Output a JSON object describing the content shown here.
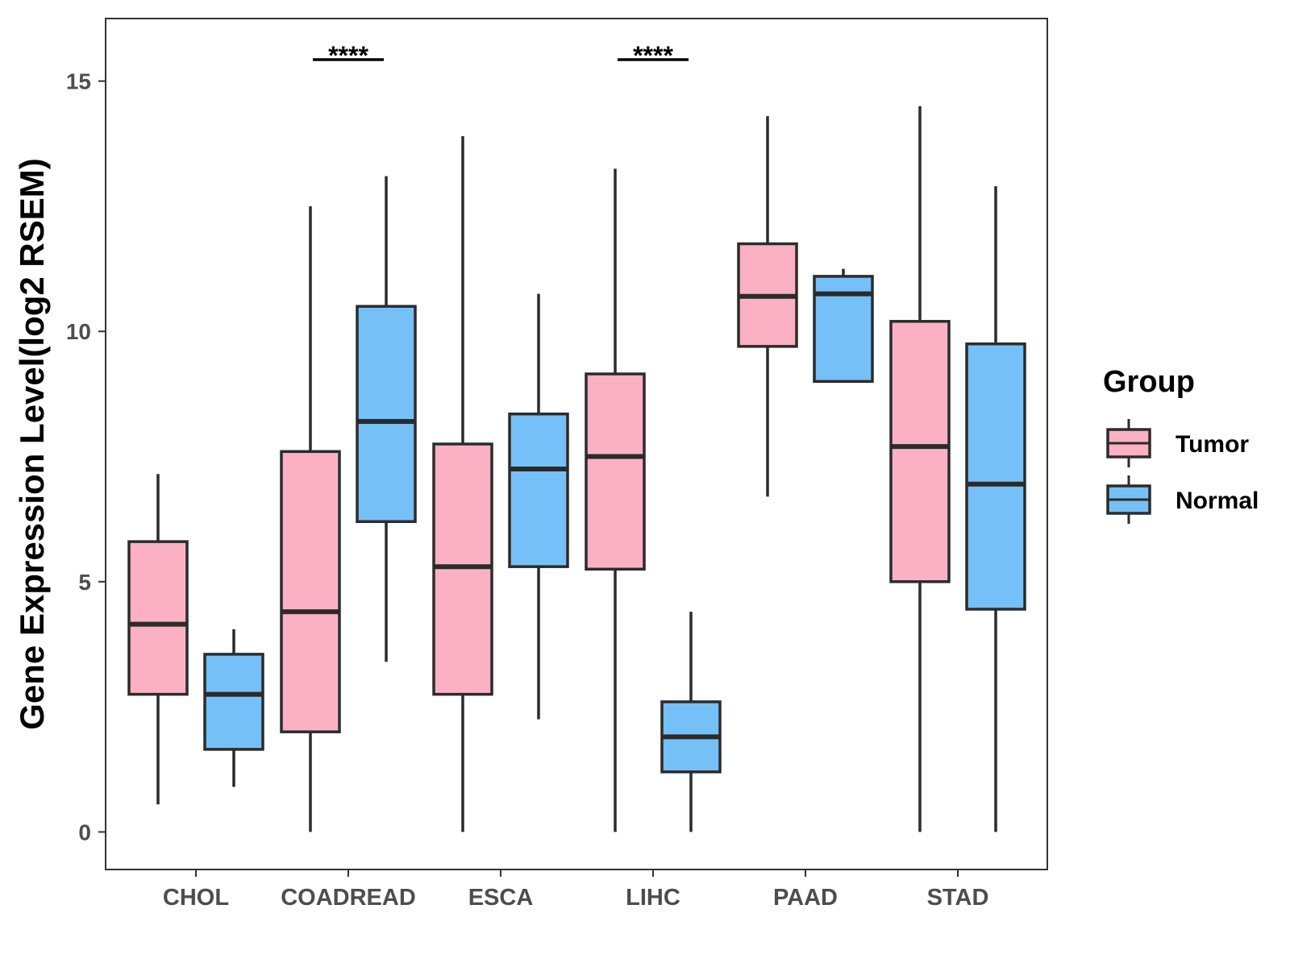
{
  "chart_data": {
    "type": "box",
    "ylabel": "Gene Expression Level(log2 RSEM)",
    "xlabel": "",
    "ylim": [
      -0.75,
      16.25
    ],
    "yticks": [
      0,
      5,
      10,
      15
    ],
    "ytick_labels": [
      "0",
      "5",
      "10",
      "15"
    ],
    "categories": [
      "CHOL",
      "COADREAD",
      "ESCA",
      "LIHC",
      "PAAD",
      "STAD"
    ],
    "legend": {
      "title": "Group",
      "position": "right",
      "entries": [
        {
          "name": "Tumor",
          "color": "#FBB1C3"
        },
        {
          "name": "Normal",
          "color": "#76C0F8"
        }
      ]
    },
    "series": [
      {
        "name": "Tumor",
        "color": "#FBB1C3",
        "boxes": [
          {
            "category": "CHOL",
            "whisker_low": 0.55,
            "q1": 2.75,
            "median": 4.15,
            "q3": 5.8,
            "whisker_high": 7.15
          },
          {
            "category": "COADREAD",
            "whisker_low": 0.0,
            "q1": 2.0,
            "median": 4.4,
            "q3": 7.6,
            "whisker_high": 12.5
          },
          {
            "category": "ESCA",
            "whisker_low": 0.0,
            "q1": 2.75,
            "median": 5.3,
            "q3": 7.75,
            "whisker_high": 13.9
          },
          {
            "category": "LIHC",
            "whisker_low": 0.0,
            "q1": 5.25,
            "median": 7.5,
            "q3": 9.15,
            "whisker_high": 13.25
          },
          {
            "category": "PAAD",
            "whisker_low": 6.7,
            "q1": 9.7,
            "median": 10.7,
            "q3": 11.75,
            "whisker_high": 14.3
          },
          {
            "category": "STAD",
            "whisker_low": 0.0,
            "q1": 5.0,
            "median": 7.7,
            "q3": 10.2,
            "whisker_high": 14.5
          }
        ]
      },
      {
        "name": "Normal",
        "color": "#76C0F8",
        "boxes": [
          {
            "category": "CHOL",
            "whisker_low": 0.9,
            "q1": 1.65,
            "median": 2.75,
            "q3": 3.55,
            "whisker_high": 4.05
          },
          {
            "category": "COADREAD",
            "whisker_low": 3.4,
            "q1": 6.2,
            "median": 8.2,
            "q3": 10.5,
            "whisker_high": 13.1
          },
          {
            "category": "ESCA",
            "whisker_low": 2.25,
            "q1": 5.3,
            "median": 7.25,
            "q3": 8.35,
            "whisker_high": 10.75
          },
          {
            "category": "LIHC",
            "whisker_low": 0.0,
            "q1": 1.2,
            "median": 1.9,
            "q3": 2.6,
            "whisker_high": 4.4
          },
          {
            "category": "PAAD",
            "whisker_low": 9.0,
            "q1": 9.0,
            "median": 10.75,
            "q3": 11.1,
            "whisker_high": 11.25
          },
          {
            "category": "STAD",
            "whisker_low": 0.0,
            "q1": 4.45,
            "median": 6.95,
            "q3": 9.75,
            "whisker_high": 12.9
          }
        ]
      }
    ],
    "significance": [
      {
        "category": "COADREAD",
        "label": "****"
      },
      {
        "category": "LIHC",
        "label": "****"
      }
    ]
  }
}
